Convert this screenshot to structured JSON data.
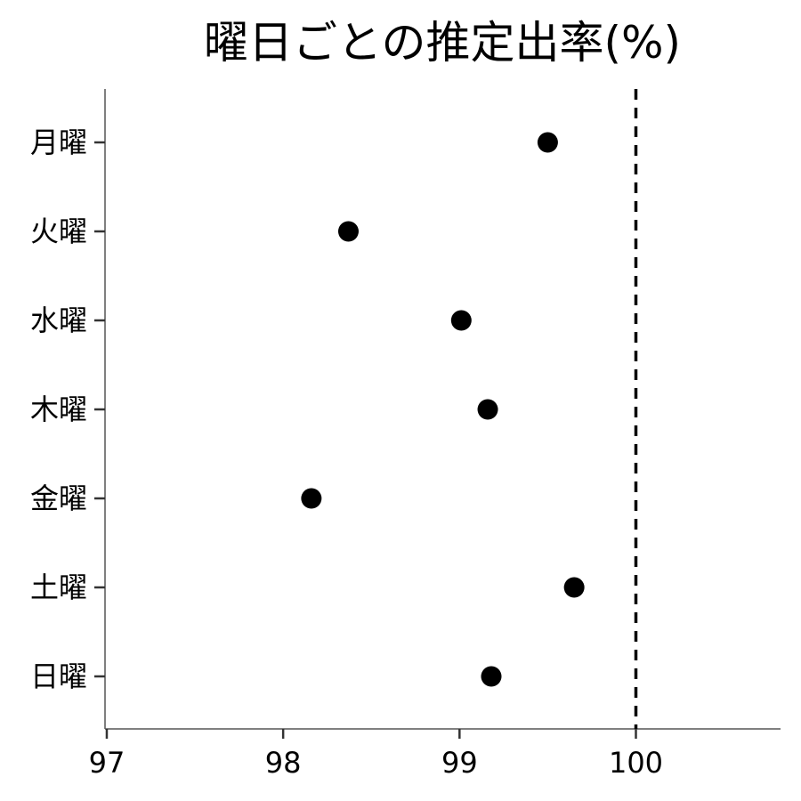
{
  "chart_data": {
    "type": "scatter",
    "title": "曜日ごとの推定出率(%)",
    "xlabel": "",
    "ylabel": "",
    "categories": [
      "月曜",
      "火曜",
      "水曜",
      "木曜",
      "金曜",
      "土曜",
      "日曜"
    ],
    "values": [
      99.5,
      98.37,
      99.01,
      99.16,
      98.16,
      99.65,
      99.18
    ],
    "xlim": [
      96.99,
      100.82
    ],
    "xticks": [
      "97",
      "98",
      "99",
      "100"
    ],
    "reference_line": {
      "x": 100,
      "style": "dashed"
    },
    "grid": false,
    "legend": "none",
    "point_color": "#000000"
  }
}
